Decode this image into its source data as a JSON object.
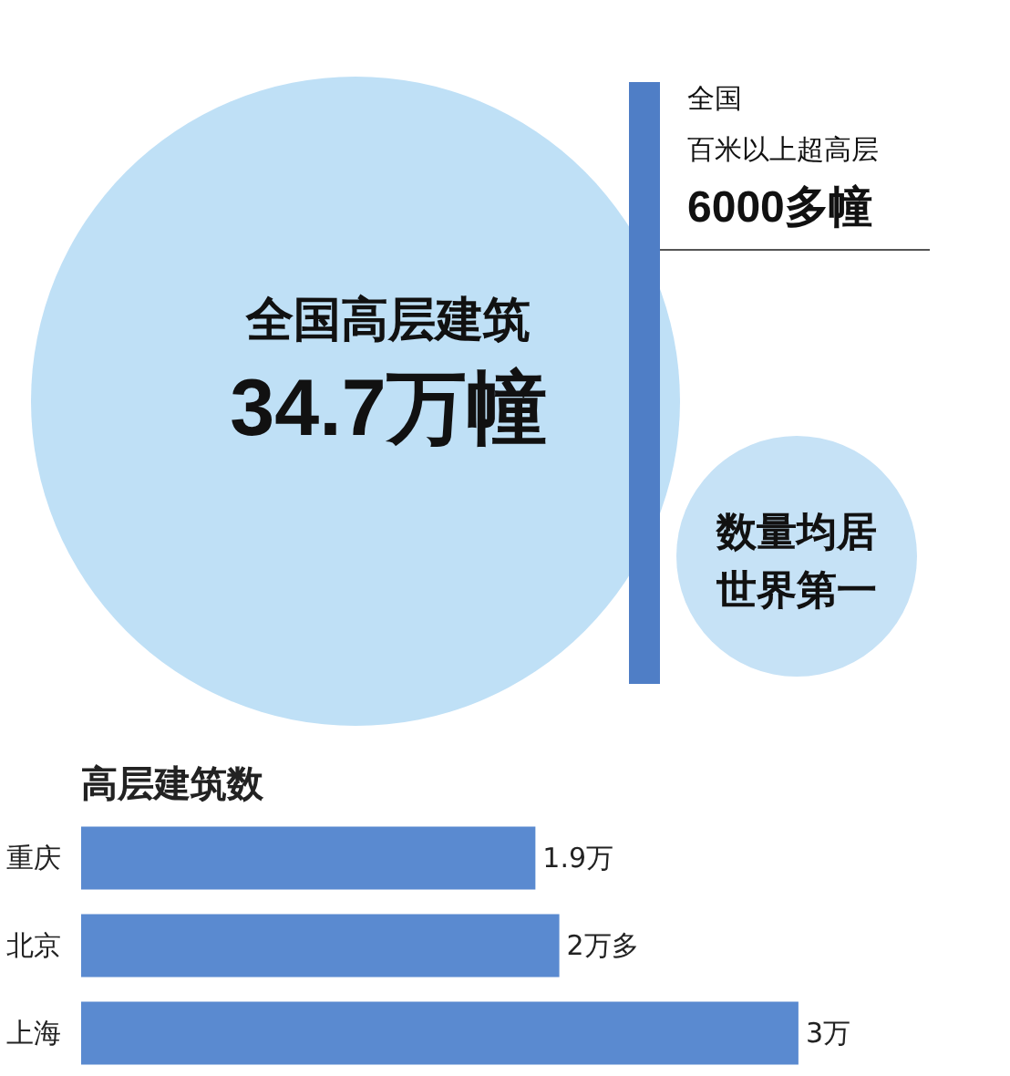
{
  "chart_data": [
    {
      "type": "other",
      "annotations": [
        "全国高层建筑",
        "34.7万幢",
        "全国",
        "百米以上超高层",
        "6000多幢",
        "数量均居",
        "世界第一"
      ]
    },
    {
      "type": "bar",
      "title": "高层建筑数",
      "orientation": "horizontal",
      "categories": [
        "重庆",
        "北京",
        "上海"
      ],
      "values": [
        1.9,
        2.0,
        3
      ],
      "value_labels": [
        "1.9万",
        "2万多",
        "3万"
      ],
      "color": "#5a8ad0"
    }
  ]
}
